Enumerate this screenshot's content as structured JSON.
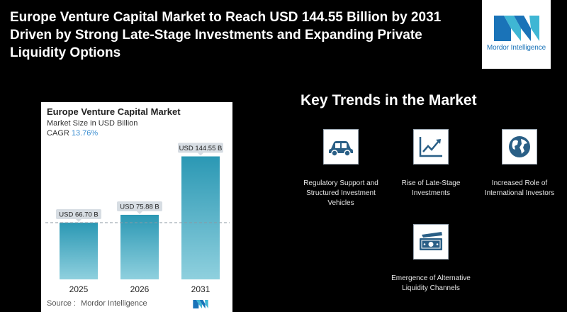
{
  "headline": "Europe Venture Capital Market to Reach USD 144.55 Billion by 2031 Driven by Strong Late-Stage Investments and Expanding Private Liquidity Options",
  "logo": {
    "text": "Mordor Intelligence",
    "color": "#1a73b8"
  },
  "chart_card": {
    "title": "Europe Venture Capital Market",
    "subtitle": "Market Size in USD Billion",
    "cagr_label": "CAGR",
    "cagr_value": "13.76%",
    "source_label": "Source :",
    "source_name": "Mordor Intelligence"
  },
  "chart_data": {
    "type": "bar",
    "categories": [
      "2025",
      "2026",
      "2031"
    ],
    "values": [
      66.7,
      75.88,
      144.55
    ],
    "data_labels": [
      "USD 66.70 B",
      "USD 75.88 B",
      "USD 144.55 B"
    ],
    "title": "Europe Venture Capital Market",
    "ylabel": "Market Size in USD Billion",
    "ylim": [
      0,
      150
    ],
    "grid": false,
    "reference_line": 66.7,
    "bar_color_top": "#2b98b4",
    "bar_color_bottom": "#8fd0de"
  },
  "trends": {
    "title": "Key Trends in the Market",
    "items": [
      {
        "label": "Regulatory Support and Structured Investment Vehicles",
        "icon": "car-icon"
      },
      {
        "label": "Rise of Late-Stage Investments",
        "icon": "growth-chart-icon"
      },
      {
        "label": "Increased Role of International Investors",
        "icon": "globe-icon"
      },
      {
        "label": "Emergence of Alternative Liquidity Channels",
        "icon": "banknote-icon"
      }
    ]
  }
}
